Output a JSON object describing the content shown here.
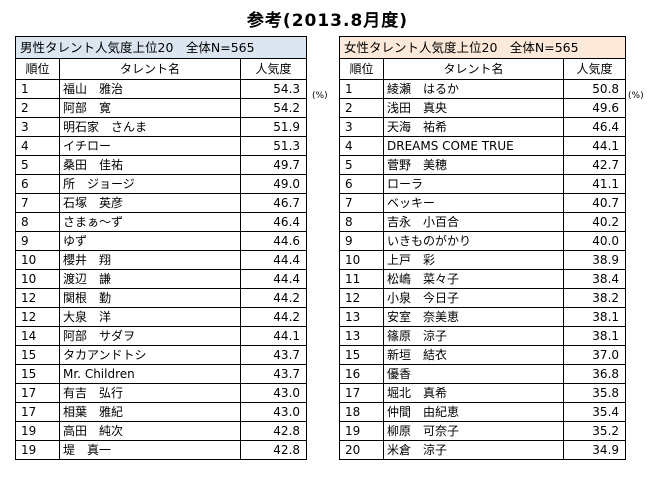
{
  "title": "参考(2013.8月度)",
  "unit": "(%)",
  "male": {
    "header": "男性タレント人気度上位20　全体N=565",
    "columns": [
      "順位",
      "タレント名",
      "人気度"
    ],
    "rows": [
      {
        "rank": "1",
        "name": "福山　雅治",
        "pop": "54.3"
      },
      {
        "rank": "2",
        "name": "阿部　寛",
        "pop": "54.2"
      },
      {
        "rank": "3",
        "name": "明石家　さんま",
        "pop": "51.9"
      },
      {
        "rank": "4",
        "name": "イチロー",
        "pop": "51.3"
      },
      {
        "rank": "5",
        "name": "桑田　佳祐",
        "pop": "49.7"
      },
      {
        "rank": "6",
        "name": "所　ジョージ",
        "pop": "49.0"
      },
      {
        "rank": "7",
        "name": "石塚　英彦",
        "pop": "46.7"
      },
      {
        "rank": "8",
        "name": "さまぁ～ず",
        "pop": "46.4"
      },
      {
        "rank": "9",
        "name": "ゆず",
        "pop": "44.6"
      },
      {
        "rank": "10",
        "name": "櫻井　翔",
        "pop": "44.4"
      },
      {
        "rank": "10",
        "name": "渡辺　謙",
        "pop": "44.4"
      },
      {
        "rank": "12",
        "name": "関根　勤",
        "pop": "44.2"
      },
      {
        "rank": "12",
        "name": "大泉　洋",
        "pop": "44.2"
      },
      {
        "rank": "14",
        "name": "阿部　サダヲ",
        "pop": "44.1"
      },
      {
        "rank": "15",
        "name": "タカアンドトシ",
        "pop": "43.7"
      },
      {
        "rank": "15",
        "name": "Mr. Children",
        "pop": "43.7"
      },
      {
        "rank": "17",
        "name": "有吉　弘行",
        "pop": "43.0"
      },
      {
        "rank": "17",
        "name": "相葉　雅紀",
        "pop": "43.0"
      },
      {
        "rank": "19",
        "name": "高田　純次",
        "pop": "42.8"
      },
      {
        "rank": "19",
        "name": "堤　真一",
        "pop": "42.8"
      }
    ]
  },
  "female": {
    "header": "女性タレント人気度上位20　全体N=565",
    "columns": [
      "順位",
      "タレント名",
      "人気度"
    ],
    "rows": [
      {
        "rank": "1",
        "name": "綾瀬　はるか",
        "pop": "50.8"
      },
      {
        "rank": "2",
        "name": "浅田　真央",
        "pop": "49.6"
      },
      {
        "rank": "3",
        "name": "天海　祐希",
        "pop": "46.4"
      },
      {
        "rank": "4",
        "name": "DREAMS COME TRUE",
        "pop": "44.1"
      },
      {
        "rank": "5",
        "name": "菅野　美穂",
        "pop": "42.7"
      },
      {
        "rank": "6",
        "name": "ローラ",
        "pop": "41.1"
      },
      {
        "rank": "7",
        "name": "ベッキー",
        "pop": "40.7"
      },
      {
        "rank": "8",
        "name": "吉永　小百合",
        "pop": "40.2"
      },
      {
        "rank": "9",
        "name": "いきものがかり",
        "pop": "40.0"
      },
      {
        "rank": "10",
        "name": "上戸　彩",
        "pop": "38.9"
      },
      {
        "rank": "11",
        "name": "松嶋　菜々子",
        "pop": "38.4"
      },
      {
        "rank": "12",
        "name": "小泉　今日子",
        "pop": "38.2"
      },
      {
        "rank": "13",
        "name": "安室　奈美恵",
        "pop": "38.1"
      },
      {
        "rank": "13",
        "name": "篠原　涼子",
        "pop": "38.1"
      },
      {
        "rank": "15",
        "name": "新垣　結衣",
        "pop": "37.0"
      },
      {
        "rank": "16",
        "name": "優香",
        "pop": "36.8"
      },
      {
        "rank": "17",
        "name": "堀北　真希",
        "pop": "35.8"
      },
      {
        "rank": "18",
        "name": "仲間　由紀恵",
        "pop": "35.4"
      },
      {
        "rank": "19",
        "name": "柳原　可奈子",
        "pop": "35.2"
      },
      {
        "rank": "20",
        "name": "米倉　涼子",
        "pop": "34.9"
      }
    ]
  }
}
